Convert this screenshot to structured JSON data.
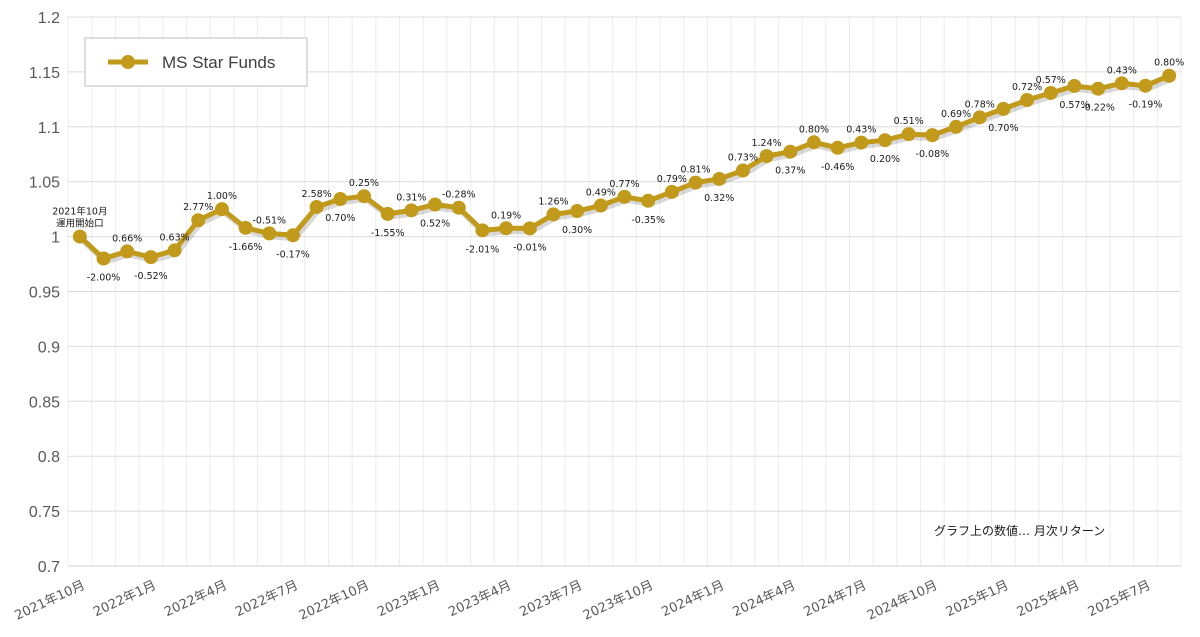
{
  "chart_data": {
    "type": "line",
    "title": "",
    "xlabel": "",
    "ylabel": "",
    "ylim": [
      0.7,
      1.2
    ],
    "yticks": [
      "0.7",
      "0.75",
      "0.8",
      "0.85",
      "0.9",
      "0.95",
      "1",
      "1.05",
      "1.1",
      "1.15",
      "1.2"
    ],
    "grid": true,
    "legend": {
      "position": "top-left",
      "entries": [
        "MS Star Funds"
      ]
    },
    "color": "#C19A1B",
    "x_tick_labels": [
      "2021年10月",
      "2022年1月",
      "2022年4月",
      "2022年7月",
      "2022年10月",
      "2023年1月",
      "2023年4月",
      "2023年7月",
      "2023年10月",
      "2024年1月",
      "2024年4月",
      "2024年7月",
      "2024年10月",
      "2025年1月",
      "2025年4月",
      "2025年7月"
    ],
    "start_label": [
      "2021年10月",
      "運用開始口"
    ],
    "series": [
      {
        "name": "MS Star Funds",
        "values": [
          1.0,
          0.98,
          0.9865,
          0.9813,
          0.9875,
          1.0149,
          1.025,
          1.008,
          1.0029,
          1.0012,
          1.027,
          1.0342,
          1.0368,
          1.0207,
          1.0239,
          1.0292,
          1.0263,
          1.0057,
          1.0076,
          1.0075,
          1.0202,
          1.0233,
          1.0283,
          1.0362,
          1.0326,
          1.0407,
          1.0492,
          1.0525,
          1.0602,
          1.0733,
          1.0773,
          1.0859,
          1.0809,
          1.0856,
          1.0878,
          1.0933,
          1.0924,
          1.1,
          1.1086,
          1.1163,
          1.1244,
          1.1308,
          1.1372,
          1.1347,
          1.1396,
          1.1374,
          1.1465
        ],
        "labels": [
          "",
          "-2.00%",
          "0.66%",
          "-0.52%",
          "0.63%",
          "2.77%",
          "1.00%",
          "-1.66%",
          "-0.51%",
          "-0.17%",
          "2.58%",
          "0.70%",
          "0.25%",
          "-1.55%",
          "0.31%",
          "0.52%",
          "-0.28%",
          "-2.01%",
          "0.19%",
          "-0.01%",
          "1.26%",
          "0.30%",
          "0.49%",
          "0.77%",
          "-0.35%",
          "0.79%",
          "0.81%",
          "0.32%",
          "0.73%",
          "1.24%",
          "0.37%",
          "0.80%",
          "-0.46%",
          "0.43%",
          "0.20%",
          "0.51%",
          "-0.08%",
          "0.69%",
          "0.78%",
          "0.70%",
          "0.72%",
          "0.57%",
          "0.57%",
          "-0.22%",
          "0.43%",
          "-0.19%",
          "0.80%"
        ]
      }
    ],
    "annotation": "グラフ上の数値… 月次リターン"
  }
}
